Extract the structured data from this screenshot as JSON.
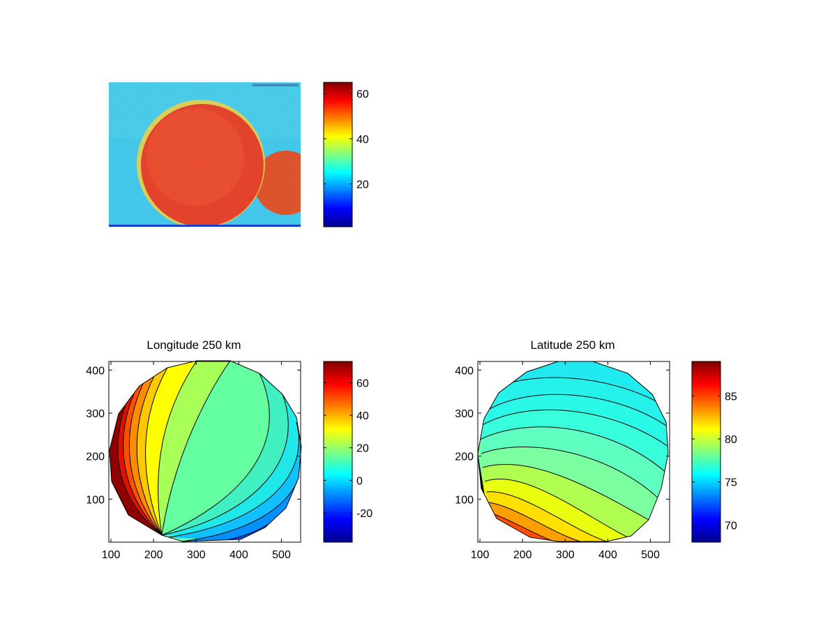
{
  "figure": {
    "background": "#ffffff",
    "colormap": "jet"
  },
  "chart_data": [
    {
      "type": "heatmap",
      "title": "",
      "description_values": "camera image with disk of high intensity",
      "colorbar": {
        "ticks": [
          20,
          40,
          60
        ],
        "range": [
          1,
          65
        ]
      },
      "axes_visible": false
    },
    {
      "type": "heatmap",
      "subtype": "filled-contour",
      "title": "Longitude 250 km",
      "x_ticks": [
        100,
        200,
        300,
        400,
        500
      ],
      "y_ticks": [
        100,
        200,
        300,
        400
      ],
      "xlim": [
        95,
        545
      ],
      "ylim": [
        0,
        420
      ],
      "colorbar": {
        "ticks": [
          60,
          40,
          20,
          0,
          -20
        ],
        "range": [
          -38,
          73
        ]
      }
    },
    {
      "type": "heatmap",
      "subtype": "filled-contour",
      "title": "Latitude 250 km",
      "x_ticks": [
        100,
        200,
        300,
        400,
        500
      ],
      "y_ticks": [
        100,
        200,
        300,
        400
      ],
      "xlim": [
        95,
        545
      ],
      "ylim": [
        0,
        420
      ],
      "colorbar": {
        "ticks": [
          85,
          80,
          75,
          70
        ],
        "range": [
          68,
          89
        ]
      }
    }
  ]
}
